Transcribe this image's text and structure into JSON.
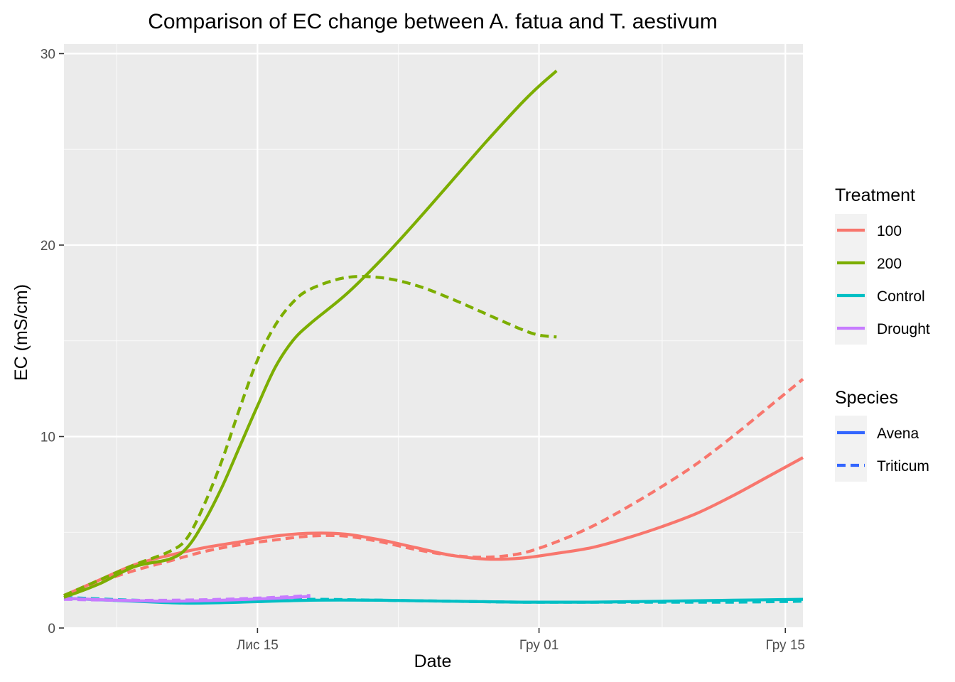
{
  "chart_data": {
    "type": "line",
    "title": "Comparison of EC change between A. fatua and T. aestivum",
    "xlabel": "Date",
    "ylabel": "EC (mS/cm)",
    "ylim": [
      0,
      30.5
    ],
    "y_ticks": [
      0,
      10,
      20,
      30
    ],
    "x_ticks": [
      {
        "value": "2023-11-15",
        "label": "Лис 15"
      },
      {
        "value": "2023-12-01",
        "label": "Гру 01"
      },
      {
        "value": "2023-12-15",
        "label": "Гру 15"
      }
    ],
    "xlim": [
      "2023-11-04",
      "2023-12-16"
    ],
    "grid": true,
    "panel_background": "#ebebeb",
    "legend": {
      "placement": "right",
      "color": {
        "title": "Treatment",
        "entries": [
          {
            "label": "100",
            "color": "#F8766D"
          },
          {
            "label": "200",
            "color": "#7CAE00"
          },
          {
            "label": "Control",
            "color": "#00BFC4"
          },
          {
            "label": "Drought",
            "color": "#C77CFF"
          }
        ]
      },
      "linetype": {
        "title": "Species",
        "key_color": "#3366FF",
        "entries": [
          {
            "label": "Avena",
            "dash": "solid"
          },
          {
            "label": "Triticum",
            "dash": "dashed"
          }
        ]
      }
    },
    "series": [
      {
        "treatment": "200",
        "species": "Avena",
        "color": "#7CAE00",
        "dash": "solid",
        "points": [
          [
            "2023-11-04",
            1.6
          ],
          [
            "2023-11-06",
            2.3
          ],
          [
            "2023-11-08",
            3.2
          ],
          [
            "2023-11-10",
            3.6
          ],
          [
            "2023-11-11",
            4.2
          ],
          [
            "2023-11-12",
            5.6
          ],
          [
            "2023-11-13",
            7.4
          ],
          [
            "2023-11-14",
            9.5
          ],
          [
            "2023-11-15",
            11.6
          ],
          [
            "2023-11-16",
            13.6
          ],
          [
            "2023-11-17",
            15.0
          ],
          [
            "2023-11-18",
            15.9
          ],
          [
            "2023-11-20",
            17.4
          ],
          [
            "2023-11-22",
            19.2
          ],
          [
            "2023-11-24",
            21.2
          ],
          [
            "2023-11-26",
            23.3
          ],
          [
            "2023-11-28",
            25.4
          ],
          [
            "2023-11-30",
            27.4
          ],
          [
            "2023-12-01",
            28.3
          ],
          [
            "2023-12-02",
            29.1
          ]
        ]
      },
      {
        "treatment": "200",
        "species": "Triticum",
        "color": "#7CAE00",
        "dash": "dashed",
        "points": [
          [
            "2023-11-04",
            1.7
          ],
          [
            "2023-11-06",
            2.5
          ],
          [
            "2023-11-08",
            3.3
          ],
          [
            "2023-11-10",
            4.0
          ],
          [
            "2023-11-11",
            4.7
          ],
          [
            "2023-11-12",
            6.5
          ],
          [
            "2023-11-13",
            8.8
          ],
          [
            "2023-11-14",
            11.5
          ],
          [
            "2023-11-15",
            14.0
          ],
          [
            "2023-11-16",
            15.8
          ],
          [
            "2023-11-17",
            17.0
          ],
          [
            "2023-11-18",
            17.7
          ],
          [
            "2023-11-20",
            18.3
          ],
          [
            "2023-11-22",
            18.3
          ],
          [
            "2023-11-24",
            17.9
          ],
          [
            "2023-11-26",
            17.2
          ],
          [
            "2023-11-28",
            16.4
          ],
          [
            "2023-11-30",
            15.6
          ],
          [
            "2023-12-01",
            15.3
          ],
          [
            "2023-12-02",
            15.2
          ]
        ]
      },
      {
        "treatment": "100",
        "species": "Avena",
        "color": "#F8766D",
        "dash": "solid",
        "points": [
          [
            "2023-11-04",
            1.7
          ],
          [
            "2023-11-06",
            2.5
          ],
          [
            "2023-11-08",
            3.3
          ],
          [
            "2023-11-10",
            3.8
          ],
          [
            "2023-11-12",
            4.2
          ],
          [
            "2023-11-14",
            4.5
          ],
          [
            "2023-11-16",
            4.8
          ],
          [
            "2023-11-18",
            4.95
          ],
          [
            "2023-11-20",
            4.9
          ],
          [
            "2023-11-22",
            4.6
          ],
          [
            "2023-11-24",
            4.2
          ],
          [
            "2023-11-26",
            3.8
          ],
          [
            "2023-11-28",
            3.6
          ],
          [
            "2023-11-30",
            3.65
          ],
          [
            "2023-12-02",
            3.9
          ],
          [
            "2023-12-04",
            4.2
          ],
          [
            "2023-12-06",
            4.7
          ],
          [
            "2023-12-08",
            5.3
          ],
          [
            "2023-12-10",
            6.0
          ],
          [
            "2023-12-12",
            6.9
          ],
          [
            "2023-12-14",
            7.9
          ],
          [
            "2023-12-16",
            8.9
          ]
        ]
      },
      {
        "treatment": "100",
        "species": "Triticum",
        "color": "#F8766D",
        "dash": "dashed",
        "points": [
          [
            "2023-11-04",
            1.7
          ],
          [
            "2023-11-06",
            2.4
          ],
          [
            "2023-11-08",
            3.0
          ],
          [
            "2023-11-10",
            3.5
          ],
          [
            "2023-11-12",
            4.0
          ],
          [
            "2023-11-14",
            4.35
          ],
          [
            "2023-11-16",
            4.6
          ],
          [
            "2023-11-18",
            4.8
          ],
          [
            "2023-11-20",
            4.8
          ],
          [
            "2023-11-22",
            4.5
          ],
          [
            "2023-11-24",
            4.1
          ],
          [
            "2023-11-26",
            3.8
          ],
          [
            "2023-11-28",
            3.7
          ],
          [
            "2023-11-30",
            3.9
          ],
          [
            "2023-12-02",
            4.5
          ],
          [
            "2023-12-04",
            5.3
          ],
          [
            "2023-12-06",
            6.3
          ],
          [
            "2023-12-08",
            7.4
          ],
          [
            "2023-12-10",
            8.6
          ],
          [
            "2023-12-12",
            10.0
          ],
          [
            "2023-12-14",
            11.5
          ],
          [
            "2023-12-16",
            13.0
          ]
        ]
      },
      {
        "treatment": "Control",
        "species": "Avena",
        "color": "#00BFC4",
        "dash": "solid",
        "points": [
          [
            "2023-11-04",
            1.55
          ],
          [
            "2023-11-08",
            1.4
          ],
          [
            "2023-11-11",
            1.3
          ],
          [
            "2023-11-14",
            1.35
          ],
          [
            "2023-11-18",
            1.45
          ],
          [
            "2023-11-22",
            1.45
          ],
          [
            "2023-11-26",
            1.4
          ],
          [
            "2023-11-30",
            1.35
          ],
          [
            "2023-12-04",
            1.35
          ],
          [
            "2023-12-08",
            1.4
          ],
          [
            "2023-12-12",
            1.45
          ],
          [
            "2023-12-16",
            1.5
          ]
        ]
      },
      {
        "treatment": "Control",
        "species": "Triticum",
        "color": "#00BFC4",
        "dash": "dashed",
        "points": [
          [
            "2023-11-04",
            1.6
          ],
          [
            "2023-11-08",
            1.45
          ],
          [
            "2023-11-11",
            1.4
          ],
          [
            "2023-11-14",
            1.45
          ],
          [
            "2023-11-18",
            1.5
          ],
          [
            "2023-11-22",
            1.45
          ],
          [
            "2023-11-26",
            1.4
          ],
          [
            "2023-11-30",
            1.35
          ],
          [
            "2023-12-04",
            1.35
          ],
          [
            "2023-12-08",
            1.35
          ],
          [
            "2023-12-12",
            1.35
          ],
          [
            "2023-12-16",
            1.4
          ]
        ]
      },
      {
        "treatment": "Drought",
        "species": "Avena",
        "color": "#C77CFF",
        "dash": "solid",
        "points": [
          [
            "2023-11-04",
            1.55
          ],
          [
            "2023-11-07",
            1.45
          ],
          [
            "2023-11-10",
            1.4
          ],
          [
            "2023-11-13",
            1.45
          ],
          [
            "2023-11-16",
            1.55
          ],
          [
            "2023-11-18",
            1.65
          ]
        ]
      },
      {
        "treatment": "Drought",
        "species": "Triticum",
        "color": "#C77CFF",
        "dash": "dashed",
        "points": [
          [
            "2023-11-04",
            1.5
          ],
          [
            "2023-11-07",
            1.45
          ],
          [
            "2023-11-10",
            1.45
          ],
          [
            "2023-11-13",
            1.5
          ],
          [
            "2023-11-16",
            1.6
          ],
          [
            "2023-11-18",
            1.7
          ]
        ]
      }
    ]
  }
}
